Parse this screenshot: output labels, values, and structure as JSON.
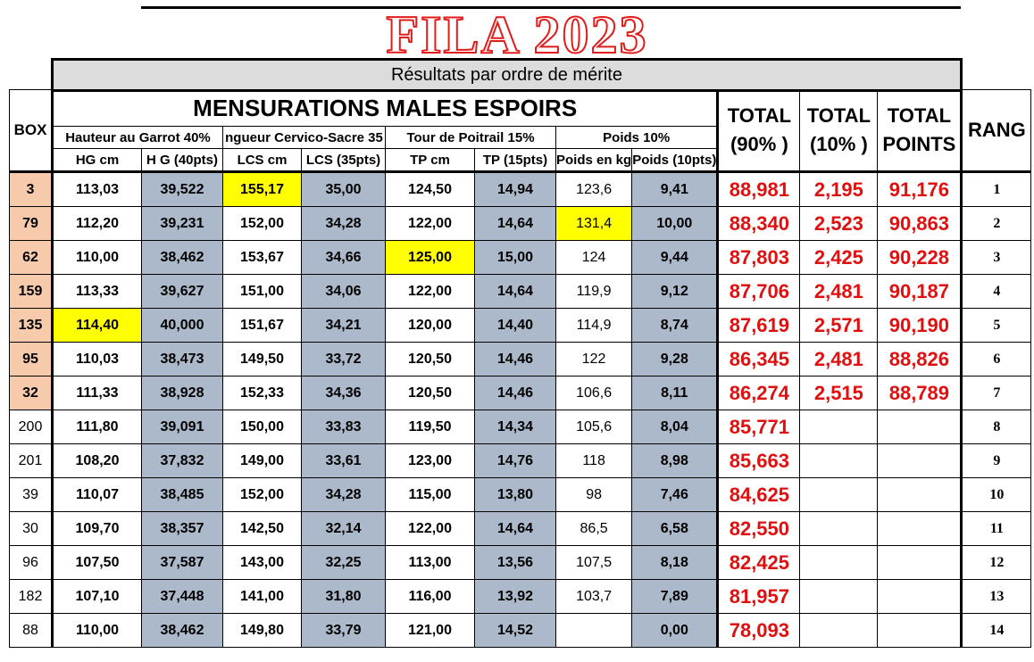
{
  "title": "FILA 2023",
  "subtitle": "Résultats par ordre de mérite",
  "header": {
    "box": "BOX",
    "main": "MENSURATIONS MALES ESPOIRS",
    "groups": [
      "Hauteur au Garrot 40%",
      "ngueur Cervico-Sacre 35",
      "Tour de Poitrail 15%",
      "Poids 10%"
    ],
    "subs": [
      "HG cm",
      "H G (40pts)",
      "LCS cm",
      "LCS (35pts)",
      "TP cm",
      "TP (15pts)",
      "Poids en kg",
      "Poids (10pts)"
    ],
    "total90_a": "TOTAL",
    "total90_b": "(90% )",
    "total10_a": "TOTAL",
    "total10_b": "(10% )",
    "totalpts_a": "TOTAL",
    "totalpts_b": "POINTS",
    "rang": "RANG"
  },
  "rows": [
    {
      "box": "3",
      "hg": "113,03",
      "hgp": "39,522",
      "lcs": "155,17",
      "lcsp": "35,00",
      "tp": "124,50",
      "tpp": "14,94",
      "poids": "123,6",
      "poidsp": "9,41",
      "t90": "88,981",
      "t10": "2,195",
      "tot": "91,176",
      "rang": "1"
    },
    {
      "box": "79",
      "hg": "112,20",
      "hgp": "39,231",
      "lcs": "152,00",
      "lcsp": "34,28",
      "tp": "122,00",
      "tpp": "14,64",
      "poids": "131,4",
      "poidsp": "10,00",
      "t90": "88,340",
      "t10": "2,523",
      "tot": "90,863",
      "rang": "2"
    },
    {
      "box": "62",
      "hg": "110,00",
      "hgp": "38,462",
      "lcs": "153,67",
      "lcsp": "34,66",
      "tp": "125,00",
      "tpp": "15,00",
      "poids": "124",
      "poidsp": "9,44",
      "t90": "87,803",
      "t10": "2,425",
      "tot": "90,228",
      "rang": "3"
    },
    {
      "box": "159",
      "hg": "113,33",
      "hgp": "39,627",
      "lcs": "151,00",
      "lcsp": "34,06",
      "tp": "122,00",
      "tpp": "14,64",
      "poids": "119,9",
      "poidsp": "9,12",
      "t90": "87,706",
      "t10": "2,481",
      "tot": "90,187",
      "rang": "4"
    },
    {
      "box": "135",
      "hg": "114,40",
      "hgp": "40,000",
      "lcs": "151,67",
      "lcsp": "34,21",
      "tp": "120,00",
      "tpp": "14,40",
      "poids": "114,9",
      "poidsp": "8,74",
      "t90": "87,619",
      "t10": "2,571",
      "tot": "90,190",
      "rang": "5"
    },
    {
      "box": "95",
      "hg": "110,03",
      "hgp": "38,473",
      "lcs": "149,50",
      "lcsp": "33,72",
      "tp": "120,50",
      "tpp": "14,46",
      "poids": "122",
      "poidsp": "9,28",
      "t90": "86,345",
      "t10": "2,481",
      "tot": "88,826",
      "rang": "6"
    },
    {
      "box": "32",
      "hg": "111,33",
      "hgp": "38,928",
      "lcs": "152,33",
      "lcsp": "34,36",
      "tp": "120,50",
      "tpp": "14,46",
      "poids": "106,6",
      "poidsp": "8,11",
      "t90": "86,274",
      "t10": "2,515",
      "tot": "88,789",
      "rang": "7"
    },
    {
      "box": "200",
      "hg": "111,80",
      "hgp": "39,091",
      "lcs": "150,00",
      "lcsp": "33,83",
      "tp": "119,50",
      "tpp": "14,34",
      "poids": "105,6",
      "poidsp": "8,04",
      "t90": "85,771",
      "t10": "",
      "tot": "",
      "rang": "8"
    },
    {
      "box": "201",
      "hg": "108,20",
      "hgp": "37,832",
      "lcs": "149,00",
      "lcsp": "33,61",
      "tp": "123,00",
      "tpp": "14,76",
      "poids": "118",
      "poidsp": "8,98",
      "t90": "85,663",
      "t10": "",
      "tot": "",
      "rang": "9"
    },
    {
      "box": "39",
      "hg": "110,07",
      "hgp": "38,485",
      "lcs": "152,00",
      "lcsp": "34,28",
      "tp": "115,00",
      "tpp": "13,80",
      "poids": "98",
      "poidsp": "7,46",
      "t90": "84,625",
      "t10": "",
      "tot": "",
      "rang": "10"
    },
    {
      "box": "30",
      "hg": "109,70",
      "hgp": "38,357",
      "lcs": "142,50",
      "lcsp": "32,14",
      "tp": "122,00",
      "tpp": "14,64",
      "poids": "86,5",
      "poidsp": "6,58",
      "t90": "82,550",
      "t10": "",
      "tot": "",
      "rang": "11"
    },
    {
      "box": "96",
      "hg": "107,50",
      "hgp": "37,587",
      "lcs": "143,00",
      "lcsp": "32,25",
      "tp": "113,00",
      "tpp": "13,56",
      "poids": "107,5",
      "poidsp": "8,18",
      "t90": "82,425",
      "t10": "",
      "tot": "",
      "rang": "12"
    },
    {
      "box": "182",
      "hg": "107,10",
      "hgp": "37,448",
      "lcs": "141,00",
      "lcsp": "31,80",
      "tp": "116,00",
      "tpp": "13,92",
      "poids": "103,7",
      "poidsp": "7,89",
      "t90": "81,957",
      "t10": "",
      "tot": "",
      "rang": "13"
    },
    {
      "box": "88",
      "hg": "110,00",
      "hgp": "38,462",
      "lcs": "149,80",
      "lcsp": "33,79",
      "tp": "121,00",
      "tpp": "14,52",
      "poids": "",
      "poidsp": "0,00",
      "t90": "78,093",
      "t10": "",
      "tot": "",
      "rang": "14"
    }
  ],
  "highlights": {
    "yellow": [
      "0.lcs",
      "1.poids",
      "2.tp",
      "4.hg"
    ]
  },
  "colors": {
    "title_stroke": "#e21b1b",
    "points_bg": "#acb9ca",
    "box_bg": "#f7caac",
    "highlight": "#ffff00",
    "totals_text": "#e01010"
  }
}
